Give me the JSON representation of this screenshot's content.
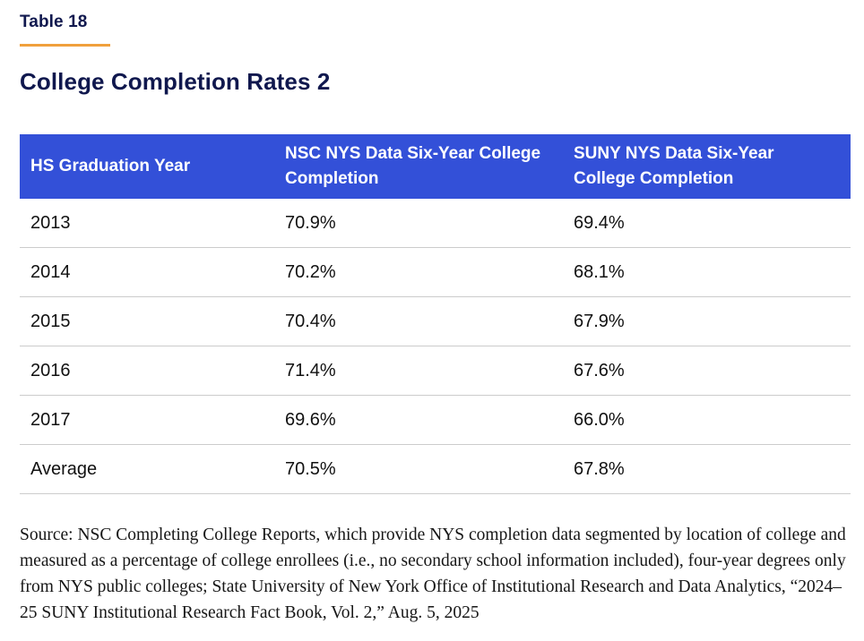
{
  "page": {
    "table_label": "Table 18",
    "title": "College Completion Rates 2",
    "colors": {
      "accent_orange": "#F0A03C",
      "header_blue": "#3350D8",
      "title_navy": "#10184E",
      "row_divider_gray": "#CCCCCC",
      "body_text": "#111111"
    }
  },
  "chart_data": {
    "type": "table",
    "title": "College Completion Rates 2",
    "columns": [
      "HS Graduation Year",
      "NSC NYS Data Six-Year College Completion",
      "SUNY NYS Data Six-Year College Completion"
    ],
    "rows": [
      [
        "2013",
        "70.9%",
        "69.4%"
      ],
      [
        "2014",
        "70.2%",
        "68.1%"
      ],
      [
        "2015",
        "70.4%",
        "67.9%"
      ],
      [
        "2016",
        "71.4%",
        "67.6%"
      ],
      [
        "2017",
        "69.6%",
        "66.0%"
      ],
      [
        "Average",
        "70.5%",
        "67.8%"
      ]
    ],
    "layout_hints": {
      "header_background": "#3350D8",
      "header_text_color": "#FFFFFF",
      "grid": "horizontal-dividers-only"
    }
  },
  "source_note": "Source: NSC Completing College Reports, which provide NYS completion data segmented by location of college and measured as a percentage of college enrollees (i.e., no secondary school information included), four-year degrees only from NYS public colleges; State University of New York Office of Institutional Research and Data Analytics, “2024–25 SUNY Institutional Research Fact Book, Vol. 2,” Aug. 5, 2025"
}
